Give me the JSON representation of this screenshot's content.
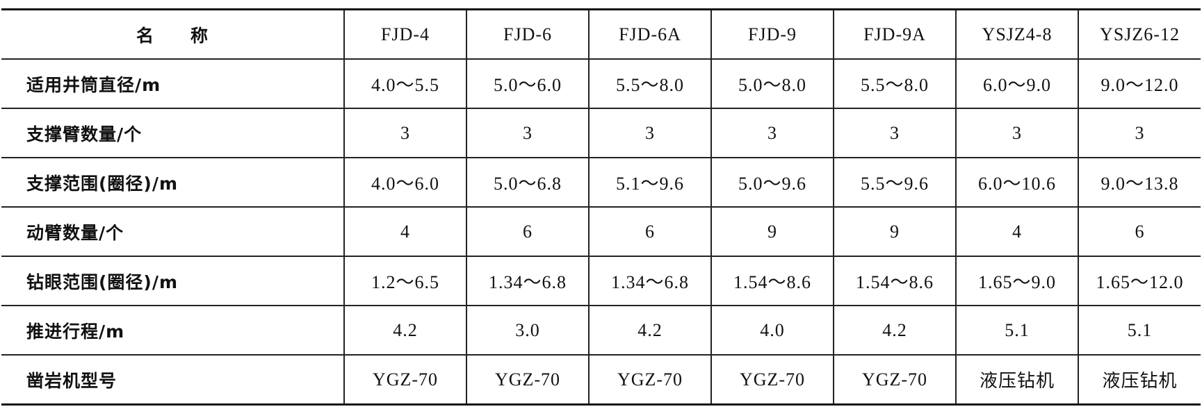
{
  "table": {
    "header": [
      "名　　称",
      "FJD-4",
      "FJD-6",
      "FJD-6A",
      "FJD-9",
      "FJD-9A",
      "YSJZ4-8",
      "YSJZ6-12"
    ],
    "rows": [
      [
        "适用井筒直径/m",
        "4.0～5.5",
        "5.0～6.0",
        "5.5～8.0",
        "5.0～8.0",
        "5.5～8.0",
        "6.0～9.0",
        "9.0～12.0"
      ],
      [
        "支撑臂数量/个",
        "3",
        "3",
        "3",
        "3",
        "3",
        "3",
        "3"
      ],
      [
        "支撑范围(圈径)/m",
        "4.0～6.0",
        "5.0～6.8",
        "5.1～9.6",
        "5.0～9.6",
        "5.5～9.6",
        "6.0～10.6",
        "9.0～13.8"
      ],
      [
        "动臂数量/个",
        "4",
        "6",
        "6",
        "9",
        "9",
        "4",
        "6"
      ],
      [
        "钻眼范围(圈径)/m",
        "1.2～6.5",
        "1.34～6.8",
        "1.34～6.8",
        "1.54～8.6",
        "1.54～8.6",
        "1.65～9.0",
        "1.65～12.0"
      ],
      [
        "推进行程/m",
        "4.2",
        "3.0",
        "4.2",
        "4.0",
        "4.2",
        "5.1",
        "5.1"
      ],
      [
        "凿岩机型号",
        "YGZ-70",
        "YGZ-70",
        "YGZ-70",
        "YGZ-70",
        "YGZ-70",
        "液压钻机",
        "液压钻机"
      ]
    ]
  }
}
